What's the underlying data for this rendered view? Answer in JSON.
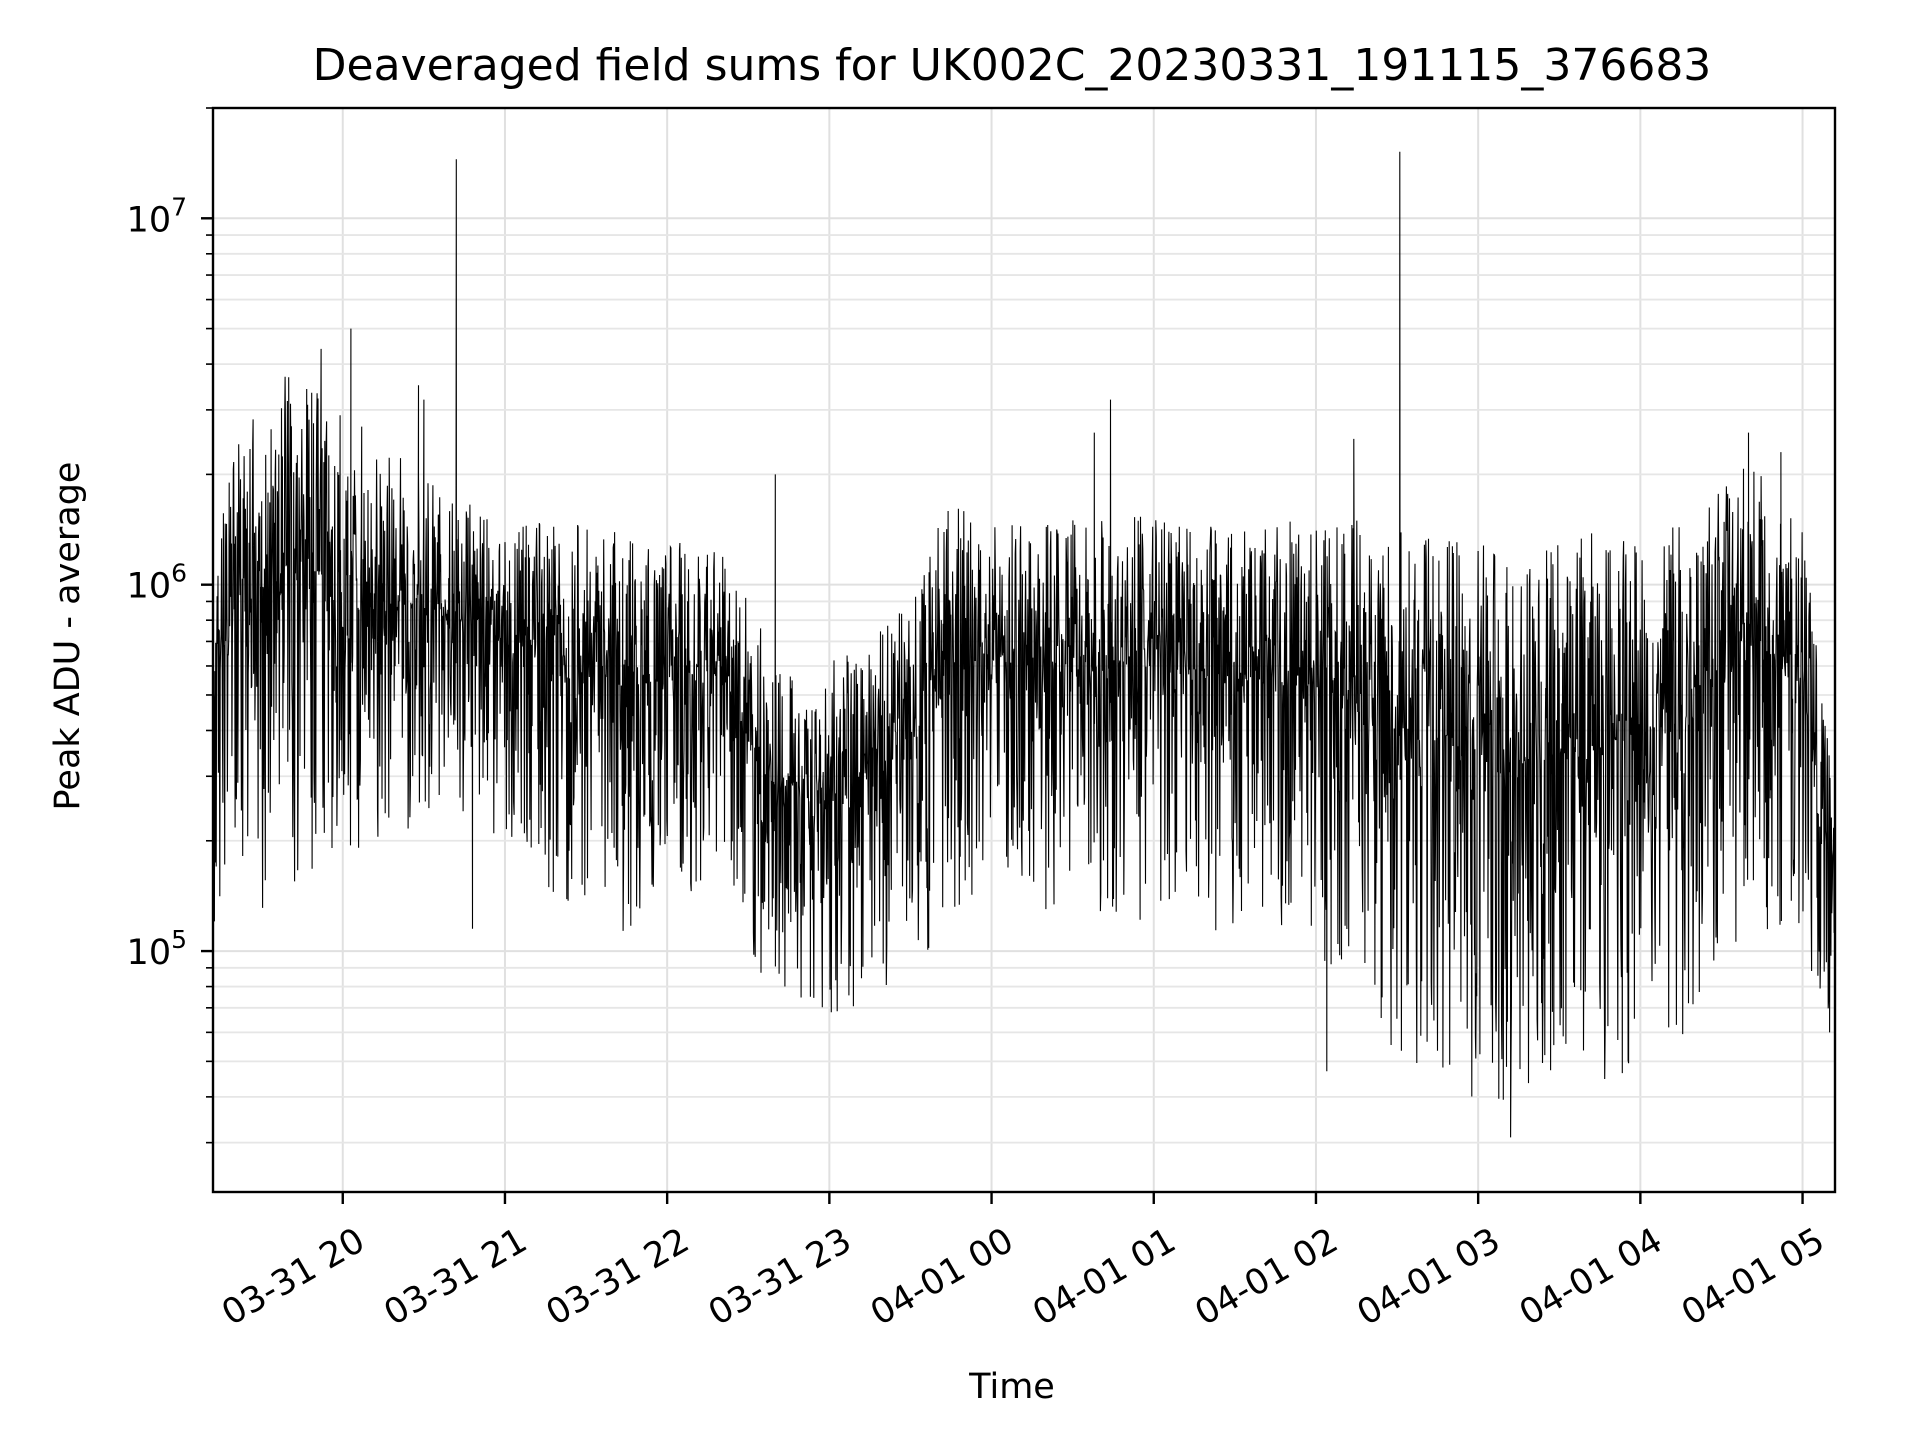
{
  "chart_data": {
    "type": "line",
    "title": "Deaveraged field sums for UK002C_20230331_191115_376683",
    "xlabel": "Time",
    "ylabel": "Peak ADU - average",
    "xlim": [
      "2023-03-31T19:12:00",
      "2023-04-01T05:12:00"
    ],
    "ylim": [
      22000,
      20000000
    ],
    "yscale": "log",
    "grid": true,
    "x_ticks": [
      {
        "value": "2023-03-31T20:00:00",
        "label": "03-31 20"
      },
      {
        "value": "2023-03-31T21:00:00",
        "label": "03-31 21"
      },
      {
        "value": "2023-03-31T22:00:00",
        "label": "03-31 22"
      },
      {
        "value": "2023-03-31T23:00:00",
        "label": "03-31 23"
      },
      {
        "value": "2023-04-01T00:00:00",
        "label": "04-01 00"
      },
      {
        "value": "2023-04-01T01:00:00",
        "label": "04-01 01"
      },
      {
        "value": "2023-04-01T02:00:00",
        "label": "04-01 02"
      },
      {
        "value": "2023-04-01T03:00:00",
        "label": "04-01 03"
      },
      {
        "value": "2023-04-01T04:00:00",
        "label": "04-01 04"
      },
      {
        "value": "2023-04-01T05:00:00",
        "label": "04-01 05"
      }
    ],
    "y_ticks": [
      {
        "value": 100000,
        "base": "10",
        "exp": "5"
      },
      {
        "value": 1000000,
        "base": "10",
        "exp": "6"
      },
      {
        "value": 10000000,
        "base": "10",
        "exp": "7"
      }
    ],
    "series": [
      {
        "color": "#000000",
        "envelope_unit": "ADU",
        "envelope": [
          {
            "t": "2023-03-31T19:12:00",
            "low": 110000,
            "high": 1900000
          },
          {
            "t": "2023-03-31T19:30:00",
            "low": 130000,
            "high": 3100000
          },
          {
            "t": "2023-03-31T19:45:00",
            "low": 160000,
            "high": 4400000
          },
          {
            "t": "2023-03-31T20:00:00",
            "low": 180000,
            "high": 2100000
          },
          {
            "t": "2023-03-31T20:20:00",
            "low": 200000,
            "high": 2300000
          },
          {
            "t": "2023-03-31T20:40:00",
            "low": 250000,
            "high": 1700000
          },
          {
            "t": "2023-03-31T21:00:00",
            "low": 180000,
            "high": 1600000
          },
          {
            "t": "2023-03-31T21:20:00",
            "low": 140000,
            "high": 1500000
          },
          {
            "t": "2023-03-31T21:40:00",
            "low": 110000,
            "high": 1400000
          },
          {
            "t": "2023-03-31T22:00:00",
            "low": 130000,
            "high": 1300000
          },
          {
            "t": "2023-03-31T22:20:00",
            "low": 160000,
            "high": 1350000
          },
          {
            "t": "2023-03-31T22:30:00",
            "low": 90000,
            "high": 900000
          },
          {
            "t": "2023-03-31T22:50:00",
            "low": 60000,
            "high": 600000
          },
          {
            "t": "2023-03-31T23:10:00",
            "low": 70000,
            "high": 650000
          },
          {
            "t": "2023-03-31T23:30:00",
            "low": 75000,
            "high": 900000
          },
          {
            "t": "2023-03-31T23:40:00",
            "low": 110000,
            "high": 1700000
          },
          {
            "t": "2023-04-01T00:00:00",
            "low": 150000,
            "high": 1500000
          },
          {
            "t": "2023-04-01T00:30:00",
            "low": 120000,
            "high": 1500000
          },
          {
            "t": "2023-04-01T01:00:00",
            "low": 120000,
            "high": 1600000
          },
          {
            "t": "2023-04-01T01:30:00",
            "low": 110000,
            "high": 1500000
          },
          {
            "t": "2023-04-01T02:00:00",
            "low": 100000,
            "high": 1500000
          },
          {
            "t": "2023-04-01T02:20:00",
            "low": 60000,
            "high": 1500000
          },
          {
            "t": "2023-04-01T02:40:00",
            "low": 45000,
            "high": 1350000
          },
          {
            "t": "2023-04-01T03:00:00",
            "low": 38000,
            "high": 1300000
          },
          {
            "t": "2023-04-01T03:20:00",
            "low": 36000,
            "high": 1300000
          },
          {
            "t": "2023-04-01T03:40:00",
            "low": 40000,
            "high": 1400000
          },
          {
            "t": "2023-04-01T04:00:00",
            "low": 50000,
            "high": 1400000
          },
          {
            "t": "2023-04-01T04:20:00",
            "low": 60000,
            "high": 1500000
          },
          {
            "t": "2023-04-01T04:40:00",
            "low": 120000,
            "high": 2200000
          },
          {
            "t": "2023-04-01T05:00:00",
            "low": 100000,
            "high": 1500000
          },
          {
            "t": "2023-04-01T05:12:00",
            "low": 60000,
            "high": 250000
          }
        ],
        "spikes": [
          {
            "t": "2023-03-31T19:18:00",
            "value": 1900000
          },
          {
            "t": "2023-03-31T19:40:00",
            "value": 2500000
          },
          {
            "t": "2023-03-31T19:47:00",
            "value": 3100000
          },
          {
            "t": "2023-03-31T19:52:00",
            "value": 4400000
          },
          {
            "t": "2023-03-31T19:59:00",
            "value": 2900000
          },
          {
            "t": "2023-03-31T20:03:00",
            "value": 5000000
          },
          {
            "t": "2023-03-31T20:07:00",
            "value": 2700000
          },
          {
            "t": "2023-03-31T20:28:00",
            "value": 3500000
          },
          {
            "t": "2023-03-31T20:30:00",
            "value": 3200000
          },
          {
            "t": "2023-03-31T20:42:00",
            "value": 14500000
          },
          {
            "t": "2023-03-31T20:48:00",
            "value": 115000
          },
          {
            "t": "2023-03-31T22:40:00",
            "value": 2000000
          },
          {
            "t": "2023-03-31T22:53:00",
            "value": 75000
          },
          {
            "t": "2023-04-01T00:38:00",
            "value": 2600000
          },
          {
            "t": "2023-04-01T00:44:00",
            "value": 3200000
          },
          {
            "t": "2023-04-01T02:04:00",
            "value": 47000
          },
          {
            "t": "2023-04-01T02:14:00",
            "value": 2500000
          },
          {
            "t": "2023-04-01T02:31:00",
            "value": 15200000
          },
          {
            "t": "2023-04-01T03:12:00",
            "value": 31000
          },
          {
            "t": "2023-04-01T04:40:00",
            "value": 2600000
          },
          {
            "t": "2023-04-01T04:52:00",
            "value": 2300000
          },
          {
            "t": "2023-04-01T05:10:00",
            "value": 60000
          }
        ]
      }
    ]
  }
}
